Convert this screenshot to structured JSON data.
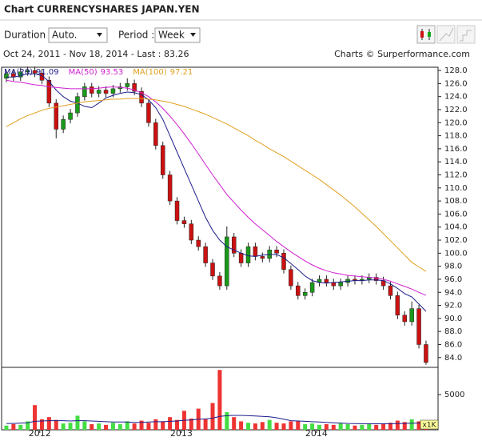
{
  "header": {
    "title": "Chart CURRENCYSHARES JAPAN.YEN"
  },
  "controls": {
    "duration_label": "Duration :",
    "duration_value": "Auto.",
    "period_label": "Period :",
    "period_value": "Week"
  },
  "chart_data": {
    "type": "candlestick",
    "range_label": "Oct 24, 2011 - Nov 18, 2014 - Last : 83.26",
    "credit": "Charts © Surperformance.com",
    "open": [
      126.8,
      127.5,
      127,
      127.8,
      128,
      127.6,
      126.5,
      123,
      119,
      120.5,
      121.5,
      124,
      125.5,
      124.5,
      125,
      124.5,
      125.2,
      125.5,
      126,
      124.8,
      123,
      120,
      116.5,
      112,
      108,
      105,
      104.5,
      102,
      101,
      98.5,
      96.5,
      95,
      102.5,
      100,
      98.5,
      101,
      99.5,
      99.2,
      100.5,
      100,
      97.5,
      95,
      93.5,
      94,
      95.5,
      96,
      95.5,
      95,
      95.5,
      96,
      95.8,
      96,
      96.3,
      95.8,
      95,
      93.5,
      90.5,
      89.5,
      91.5,
      86
    ],
    "high": [
      128.1,
      128.1,
      128.4,
      128.6,
      128.6,
      128.2,
      127.1,
      123.6,
      121.1,
      122.1,
      124.6,
      126.1,
      126.1,
      125.6,
      125.6,
      125.8,
      126.1,
      126.8,
      126.6,
      125.4,
      123.6,
      120.6,
      117.1,
      112.6,
      108.6,
      105.6,
      105.1,
      102.6,
      101.6,
      99.1,
      97.1,
      104.1,
      103.1,
      100.6,
      101.6,
      101.6,
      100.1,
      101.1,
      101.1,
      100.6,
      98.1,
      95.6,
      94.6,
      96.1,
      96.6,
      96.6,
      96.1,
      96.1,
      96.6,
      96.6,
      96.6,
      96.9,
      96.9,
      96.4,
      95.6,
      94.1,
      91.1,
      92.6,
      92.1,
      86.6
    ],
    "low": [
      126.2,
      126.4,
      126.4,
      127.2,
      127,
      125.9,
      122.4,
      117.6,
      118.4,
      119.9,
      120.9,
      123.4,
      123.9,
      123.9,
      123.9,
      123.9,
      124.6,
      124.9,
      124.2,
      122.4,
      119.4,
      115.9,
      111.4,
      107.4,
      104.4,
      103.9,
      101.4,
      100.4,
      97.9,
      95.9,
      94.4,
      94.4,
      99.4,
      97.9,
      97.9,
      98.9,
      98.6,
      98.6,
      99.4,
      96.9,
      94.4,
      92.9,
      92.9,
      93.4,
      94.9,
      94.9,
      94.4,
      94.4,
      94.9,
      95.2,
      95.2,
      95.4,
      95.2,
      94.4,
      92.9,
      89.9,
      88.9,
      88.9,
      85.4,
      82.9
    ],
    "close": [
      127.5,
      127,
      127.8,
      128,
      127.6,
      126.5,
      123,
      119,
      120.5,
      121.5,
      124,
      125.5,
      124.5,
      125,
      124.5,
      125.2,
      125.5,
      126,
      124.8,
      123,
      120,
      116.5,
      112,
      108,
      105,
      104.5,
      102,
      101,
      98.5,
      96.5,
      95,
      102.5,
      100,
      98.5,
      101,
      99.5,
      99.2,
      100.5,
      100,
      97.5,
      95,
      93.5,
      94,
      95.5,
      96,
      95.5,
      95,
      95.5,
      96,
      95.8,
      96,
      96.3,
      95.8,
      95,
      93.5,
      90.5,
      89.5,
      91.5,
      86,
      83.26
    ],
    "up_color": "#1a9a1a",
    "down_color": "#cc1111",
    "ma": [
      {
        "name": "MA(20)",
        "color": "#1c1c8c",
        "values": [
          127,
          127,
          127.2,
          127.5,
          127.5,
          127.2,
          126.3,
          125,
          124,
          123.3,
          123,
          122.5,
          122.3,
          123,
          123.8,
          124.2,
          124.5,
          124.7,
          124.6,
          124.3,
          123.5,
          122.3,
          120.5,
          118,
          115.5,
          113,
          110.5,
          108,
          105.5,
          103.5,
          102,
          101,
          100.5,
          100,
          99.6,
          99.5,
          99.7,
          99.8,
          99.8,
          99.3,
          98.4,
          97.5,
          96.5,
          95.8,
          95.5,
          95.4,
          95.5,
          95.6,
          95.7,
          95.8,
          95.8,
          95.9,
          95.9,
          95.8,
          95.3,
          94.6,
          93.8,
          93.3,
          92.2,
          91.09
        ]
      },
      {
        "name": "MA(50)",
        "color": "#d020d0",
        "values": [
          126.5,
          126.3,
          126.2,
          126,
          125.8,
          125.7,
          125.5,
          125.4,
          125.3,
          125.2,
          125.2,
          125.2,
          125.2,
          125.3,
          125.4,
          125.5,
          125.4,
          125.3,
          125,
          124.6,
          124,
          123.2,
          122.2,
          121,
          119.7,
          118.3,
          116.8,
          115.2,
          113.6,
          112,
          110.5,
          109,
          107.8,
          106.6,
          105.5,
          104.5,
          103.6,
          102.7,
          101.8,
          101,
          100.2,
          99.5,
          98.8,
          98.2,
          97.7,
          97.3,
          97,
          96.8,
          96.6,
          96.5,
          96.4,
          96.3,
          96.2,
          96,
          95.7,
          95.3,
          94.9,
          94.5,
          94,
          93.53
        ]
      },
      {
        "name": "MA(100)",
        "color": "#e0a020",
        "values": [
          119.4,
          120,
          120.6,
          121.1,
          121.5,
          121.9,
          122.2,
          122.4,
          122.6,
          122.8,
          123,
          123.2,
          123.3,
          123.4,
          123.5,
          123.6,
          123.6,
          123.7,
          123.7,
          123.7,
          123.6,
          123.5,
          123.3,
          123.1,
          122.8,
          122.5,
          122.1,
          121.7,
          121.3,
          120.8,
          120.3,
          119.8,
          119.2,
          118.6,
          118,
          117.3,
          116.7,
          116,
          115.4,
          114.8,
          114.1,
          113.4,
          112.7,
          112,
          111.3,
          110.5,
          109.7,
          108.9,
          108,
          107.1,
          106.1,
          105.1,
          104.1,
          103,
          101.9,
          100.8,
          99.7,
          98.6,
          97.9,
          97.21
        ]
      }
    ],
    "volume": [
      600,
      800,
      700,
      1200,
      3500,
      1500,
      1800,
      1400,
      900,
      1000,
      2000,
      1200,
      800,
      900,
      700,
      1000,
      800,
      1200,
      900,
      1300,
      1000,
      1500,
      1200,
      1800,
      1400,
      2700,
      1600,
      3000,
      1500,
      3800,
      8500,
      2500,
      1800,
      1200,
      1000,
      900,
      1100,
      1400,
      1000,
      900,
      1200,
      1300,
      800,
      900,
      700,
      800,
      700,
      900,
      800,
      600,
      700,
      800,
      700,
      900,
      1000,
      1300,
      1100,
      1500,
      1200,
      1000
    ],
    "volume_ma": [
      900,
      900,
      950,
      1000,
      1200,
      1250,
      1300,
      1300,
      1300,
      1250,
      1300,
      1300,
      1250,
      1200,
      1150,
      1100,
      1100,
      1100,
      1050,
      1050,
      1100,
      1150,
      1150,
      1200,
      1250,
      1350,
      1400,
      1500,
      1550,
      1650,
      1900,
      2000,
      2050,
      2050,
      2000,
      1950,
      1900,
      1850,
      1700,
      1500,
      1300,
      1250,
      1200,
      1150,
      1100,
      1050,
      1000,
      950,
      900,
      880,
      860,
      850,
      850,
      850,
      860,
      880,
      900,
      930,
      950,
      960
    ],
    "volume_ma_color": "#1c1c8c",
    "volume_unit": "x1K",
    "xlim": [
      -0.67,
      60.69
    ],
    "xticks": [
      {
        "value": 4.7,
        "label": "2012"
      },
      {
        "value": 24.6,
        "label": "2013"
      },
      {
        "value": 43.6,
        "label": "2014"
      }
    ],
    "ylim": [
      82.5,
      128.5
    ],
    "yticks": [
      {
        "value": 84,
        "label": "84.0"
      },
      {
        "value": 86,
        "label": "86.0"
      },
      {
        "value": 88,
        "label": "88.0"
      },
      {
        "value": 90,
        "label": "90.0"
      },
      {
        "value": 92,
        "label": "92.0"
      },
      {
        "value": 94,
        "label": "94.0"
      },
      {
        "value": 96,
        "label": "96.0"
      },
      {
        "value": 98,
        "label": "98.0"
      },
      {
        "value": 100,
        "label": "100.0"
      },
      {
        "value": 102,
        "label": "102.0"
      },
      {
        "value": 104,
        "label": "104.0"
      },
      {
        "value": 106,
        "label": "106.0"
      },
      {
        "value": 108,
        "label": "108.0"
      },
      {
        "value": 110,
        "label": "110.0"
      },
      {
        "value": 112,
        "label": "112.0"
      },
      {
        "value": 114,
        "label": "114.0"
      },
      {
        "value": 116,
        "label": "116.0"
      },
      {
        "value": 118,
        "label": "118.0"
      },
      {
        "value": 120,
        "label": "120.0"
      },
      {
        "value": 122,
        "label": "122.0"
      },
      {
        "value": 124,
        "label": "124.0"
      },
      {
        "value": 126,
        "label": "126.0"
      },
      {
        "value": 128,
        "label": "128.0"
      }
    ],
    "y2lim": [
      0,
      8750
    ],
    "y2ticks": [
      5000
    ],
    "grid": false
  }
}
